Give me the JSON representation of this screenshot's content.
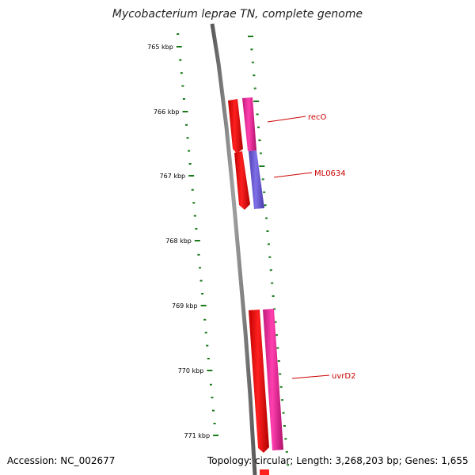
{
  "title": "Mycobacterium leprae TN, complete genome",
  "footer": {
    "accession": "Accession: NC_002677",
    "topology": "Topology: circular; Length: 3,268,203 bp; Genes: 1,655"
  },
  "ticks": [
    {
      "label": "765 kbp"
    },
    {
      "label": "766 kbp"
    },
    {
      "label": "767 kbp"
    },
    {
      "label": "768 kbp"
    },
    {
      "label": "769 kbp"
    },
    {
      "label": "770 kbp"
    },
    {
      "label": "771 kbp"
    }
  ],
  "genes": [
    {
      "name": "recO"
    },
    {
      "name": "ML0634"
    },
    {
      "name": "uvrD2"
    }
  ],
  "colors": {
    "tick": "#1a7a1a",
    "backbone": "#808080",
    "gene_red": "#ff0000",
    "gene_pink": "#ff2aa0",
    "gene_purple": "#7060d8",
    "label": "#cc0000"
  }
}
